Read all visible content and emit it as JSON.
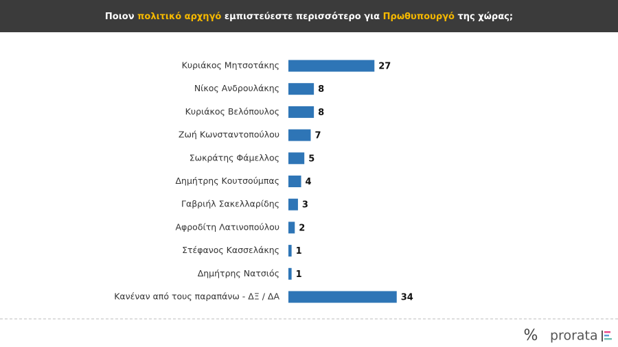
{
  "chart_data": {
    "type": "bar",
    "orientation": "horizontal",
    "title_parts": [
      {
        "text": "Ποιον ",
        "highlight": false
      },
      {
        "text": "πολιτικό αρχηγό",
        "highlight": true
      },
      {
        "text": " εμπιστεύεστε περισσότερο για ",
        "highlight": false
      },
      {
        "text": "Πρωθυπουργό",
        "highlight": true
      },
      {
        "text": " της χώρας;",
        "highlight": false
      }
    ],
    "highlight_color": "#f5b800",
    "categories": [
      "Κυριάκος Μητσοτάκης",
      "Νίκος Ανδρουλάκης",
      "Κυριάκος Βελόπουλος",
      "Ζωή Κωνσταντοπούλου",
      "Σωκράτης Φάμελλος",
      "Δημήτρης Κουτσούμπας",
      "Γαβριήλ Σακελλαρίδης",
      "Αφροδίτη Λατινοπούλου",
      "Στέφανος Κασσελάκης",
      "Δημήτρης Νατσιός",
      "Κανέναν από τους παραπάνω - ΔΞ / ΔΑ"
    ],
    "values": [
      27,
      8,
      8,
      7,
      5,
      4,
      3,
      2,
      1,
      1,
      34
    ],
    "color": "#2e75b6"
  },
  "logo": {
    "mark": "%",
    "text": "prorata"
  }
}
